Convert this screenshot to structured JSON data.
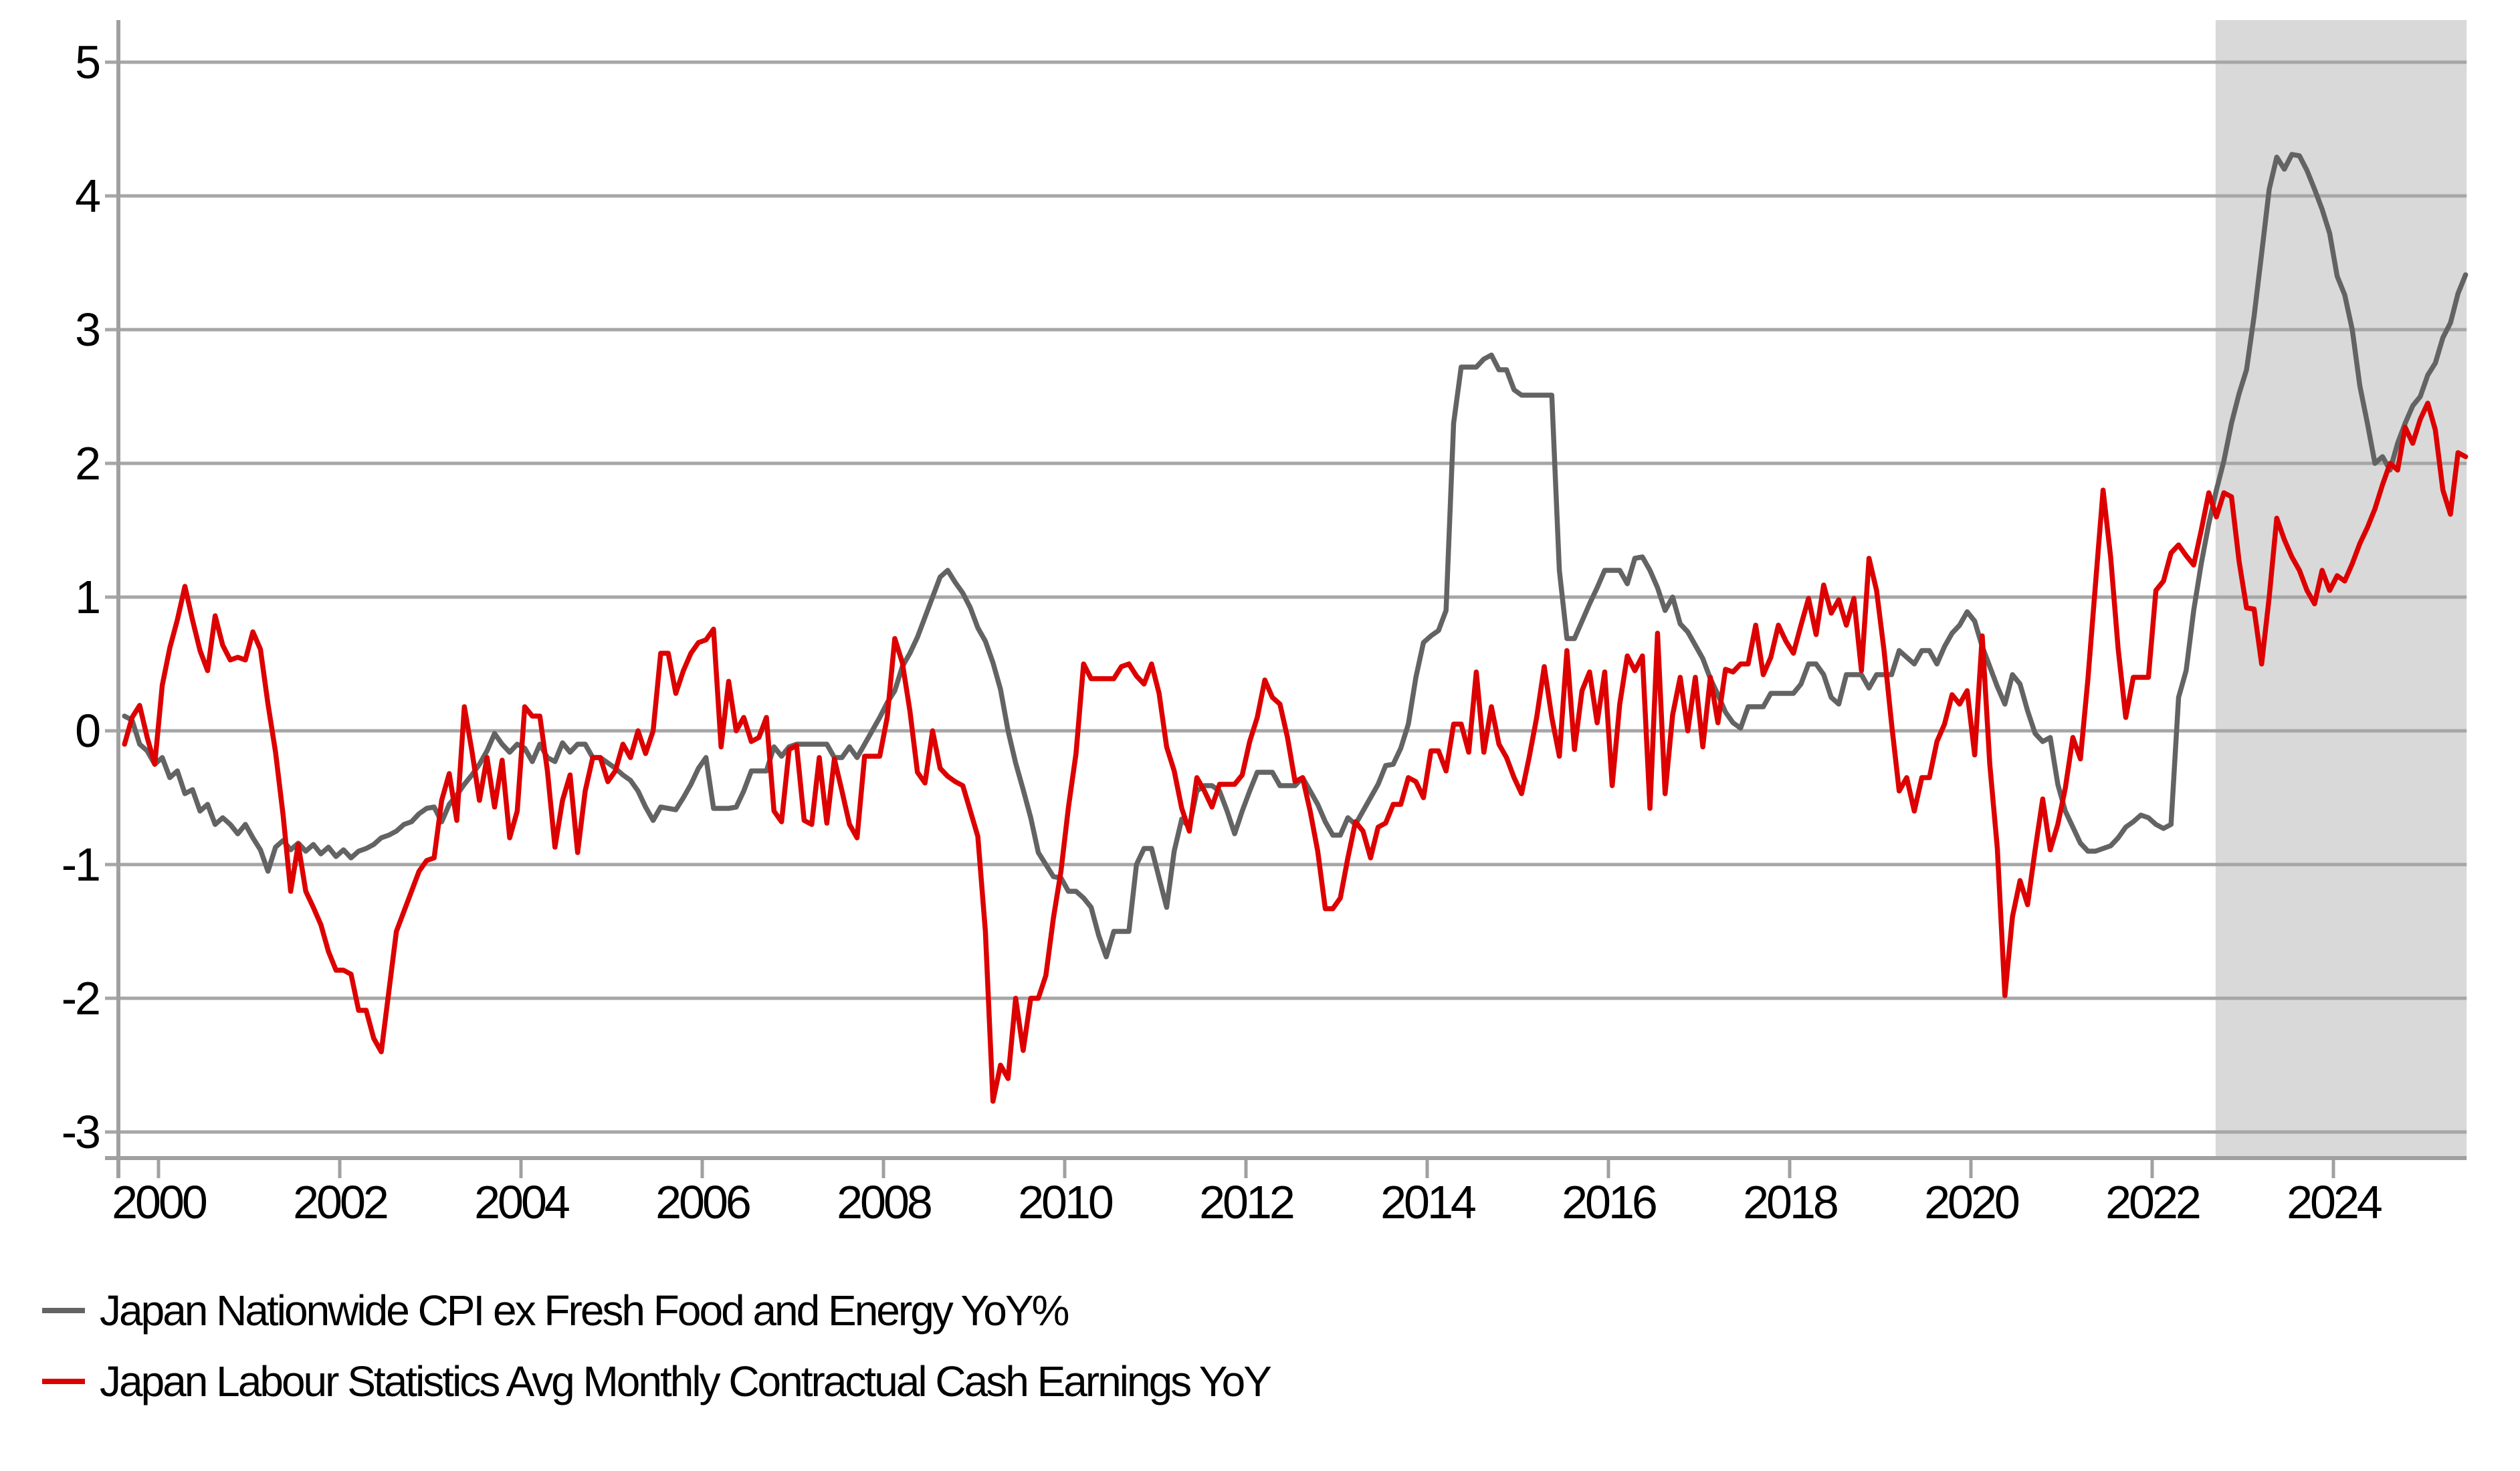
{
  "chart_data": {
    "type": "line",
    "title": "",
    "xlabel": "",
    "ylabel": "",
    "x_start": 1999.625,
    "x_step_per_point": 0.0833333,
    "xlim": [
      1999.56,
      2025.47
    ],
    "ylim": [
      -3.2,
      5.3
    ],
    "grid": "horizontal",
    "y_ticks": [
      5,
      4,
      3,
      2,
      1,
      0,
      -1,
      -2,
      -3
    ],
    "x_ticks": [
      2000,
      2002,
      2004,
      2006,
      2008,
      2010,
      2012,
      2014,
      2016,
      2018,
      2020,
      2022,
      2024
    ],
    "highlight_region": {
      "start": 2022.7,
      "end": 2025.47,
      "color": "#d9d9d9"
    },
    "legend_position": "bottom-left",
    "series": [
      {
        "name": "Japan Nationwide CPI ex Fresh Food and Energy YoY%",
        "color": "#636363",
        "values": [
          0.11,
          0.08,
          -0.1,
          -0.15,
          -0.25,
          -0.2,
          -0.35,
          -0.3,
          -0.47,
          -0.44,
          -0.6,
          -0.55,
          -0.7,
          -0.65,
          -0.7,
          -0.77,
          -0.7,
          -0.8,
          -0.89,
          -1.05,
          -0.87,
          -0.82,
          -0.89,
          -0.84,
          -0.9,
          -0.85,
          -0.92,
          -0.87,
          -0.94,
          -0.89,
          -0.95,
          -0.9,
          -0.88,
          -0.85,
          -0.8,
          -0.78,
          -0.75,
          -0.7,
          -0.68,
          -0.62,
          -0.58,
          -0.57,
          -0.68,
          -0.55,
          -0.48,
          -0.4,
          -0.33,
          -0.25,
          -0.15,
          -0.02,
          -0.1,
          -0.16,
          -0.1,
          -0.13,
          -0.23,
          -0.1,
          -0.2,
          -0.23,
          -0.09,
          -0.16,
          -0.1,
          -0.1,
          -0.2,
          -0.2,
          -0.24,
          -0.28,
          -0.33,
          -0.37,
          -0.45,
          -0.57,
          -0.67,
          -0.57,
          -0.58,
          -0.59,
          -0.5,
          -0.4,
          -0.28,
          -0.2,
          -0.58,
          -0.58,
          -0.58,
          -0.57,
          -0.45,
          -0.3,
          -0.3,
          -0.3,
          -0.12,
          -0.19,
          -0.12,
          -0.1,
          -0.1,
          -0.1,
          -0.1,
          -0.1,
          -0.2,
          -0.2,
          -0.12,
          -0.2,
          -0.1,
          0.0,
          0.1,
          0.21,
          0.3,
          0.48,
          0.58,
          0.7,
          0.85,
          1.0,
          1.15,
          1.2,
          1.11,
          1.03,
          0.92,
          0.77,
          0.67,
          0.51,
          0.31,
          0.0,
          -0.24,
          -0.44,
          -0.65,
          -0.91,
          -1.0,
          -1.09,
          -1.1,
          -1.2,
          -1.2,
          -1.25,
          -1.32,
          -1.53,
          -1.69,
          -1.5,
          -1.5,
          -1.5,
          -1.0,
          -0.88,
          -0.88,
          -1.1,
          -1.32,
          -0.9,
          -0.66,
          -0.72,
          -0.45,
          -0.41,
          -0.41,
          -0.45,
          -0.6,
          -0.77,
          -0.6,
          -0.45,
          -0.31,
          -0.31,
          -0.31,
          -0.41,
          -0.41,
          -0.41,
          -0.35,
          -0.45,
          -0.55,
          -0.68,
          -0.78,
          -0.78,
          -0.65,
          -0.7,
          -0.6,
          -0.5,
          -0.4,
          -0.26,
          -0.25,
          -0.13,
          0.05,
          0.4,
          0.66,
          0.71,
          0.75,
          0.9,
          2.3,
          2.72,
          2.72,
          2.72,
          2.78,
          2.81,
          2.7,
          2.7,
          2.55,
          2.51,
          2.51,
          2.51,
          2.51,
          2.51,
          1.2,
          0.69,
          0.69,
          0.82,
          0.95,
          1.07,
          1.2,
          1.2,
          1.2,
          1.1,
          1.29,
          1.3,
          1.2,
          1.07,
          0.9,
          1.0,
          0.8,
          0.74,
          0.64,
          0.54,
          0.39,
          0.27,
          0.14,
          0.06,
          0.02,
          0.18,
          0.18,
          0.18,
          0.28,
          0.28,
          0.28,
          0.28,
          0.35,
          0.5,
          0.5,
          0.42,
          0.25,
          0.2,
          0.42,
          0.42,
          0.42,
          0.32,
          0.42,
          0.42,
          0.42,
          0.6,
          0.55,
          0.5,
          0.6,
          0.6,
          0.5,
          0.63,
          0.73,
          0.79,
          0.89,
          0.82,
          0.63,
          0.48,
          0.33,
          0.2,
          0.42,
          0.35,
          0.15,
          -0.02,
          -0.08,
          -0.05,
          -0.4,
          -0.6,
          -0.72,
          -0.84,
          -0.9,
          -0.9,
          -0.88,
          -0.86,
          -0.8,
          -0.72,
          -0.68,
          -0.63,
          -0.65,
          -0.7,
          -0.73,
          -0.7,
          0.25,
          0.45,
          0.9,
          1.25,
          1.55,
          1.8,
          2.02,
          2.3,
          2.52,
          2.7,
          3.1,
          3.57,
          4.05,
          4.29,
          4.2,
          4.31,
          4.3,
          4.19,
          4.05,
          3.9,
          3.72,
          3.4,
          3.26,
          3.0,
          2.58,
          2.3,
          2.0,
          2.05,
          1.95,
          2.15,
          2.3,
          2.43,
          2.5,
          2.66,
          2.75,
          2.94,
          3.05,
          3.27,
          3.41
        ]
      },
      {
        "name": "Japan Labour Statistics Avg Monthly Contractual Cash Earnings YoY",
        "color": "#dd0000",
        "values": [
          -0.1,
          0.1,
          0.19,
          -0.05,
          -0.25,
          0.34,
          0.62,
          0.83,
          1.08,
          0.83,
          0.6,
          0.45,
          0.86,
          0.64,
          0.53,
          0.55,
          0.53,
          0.74,
          0.61,
          0.2,
          -0.16,
          -0.63,
          -1.2,
          -0.85,
          -1.2,
          -1.32,
          -1.45,
          -1.65,
          -1.79,
          -1.79,
          -1.82,
          -2.09,
          -2.09,
          -2.3,
          -2.4,
          -1.95,
          -1.5,
          -1.35,
          -1.2,
          -1.05,
          -0.97,
          -0.95,
          -0.52,
          -0.32,
          -0.67,
          0.18,
          -0.15,
          -0.52,
          -0.2,
          -0.57,
          -0.22,
          -0.8,
          -0.6,
          0.18,
          0.11,
          0.11,
          -0.3,
          -0.87,
          -0.52,
          -0.33,
          -0.91,
          -0.45,
          -0.2,
          -0.2,
          -0.38,
          -0.3,
          -0.1,
          -0.2,
          0.0,
          -0.17,
          0.0,
          0.58,
          0.58,
          0.28,
          0.45,
          0.58,
          0.66,
          0.68,
          0.76,
          -0.12,
          0.37,
          0.0,
          0.1,
          -0.08,
          -0.05,
          0.1,
          -0.6,
          -0.68,
          -0.14,
          -0.11,
          -0.67,
          -0.7,
          -0.2,
          -0.69,
          -0.21,
          -0.45,
          -0.7,
          -0.8,
          -0.19,
          -0.19,
          -0.19,
          0.1,
          0.69,
          0.51,
          0.15,
          -0.31,
          -0.39,
          0.0,
          -0.28,
          -0.34,
          -0.38,
          -0.41,
          -0.6,
          -0.79,
          -1.5,
          -2.77,
          -2.5,
          -2.6,
          -2.0,
          -2.39,
          -2.0,
          -2.0,
          -1.83,
          -1.4,
          -1.05,
          -0.57,
          -0.17,
          0.5,
          0.39,
          0.39,
          0.39,
          0.39,
          0.48,
          0.5,
          0.41,
          0.35,
          0.5,
          0.28,
          -0.12,
          -0.3,
          -0.58,
          -0.75,
          -0.35,
          -0.45,
          -0.57,
          -0.4,
          -0.4,
          -0.4,
          -0.33,
          -0.08,
          0.1,
          0.38,
          0.25,
          0.2,
          -0.05,
          -0.38,
          -0.35,
          -0.6,
          -0.9,
          -1.33,
          -1.33,
          -1.25,
          -0.95,
          -0.68,
          -0.75,
          -0.95,
          -0.72,
          -0.69,
          -0.55,
          -0.55,
          -0.35,
          -0.38,
          -0.5,
          -0.15,
          -0.15,
          -0.3,
          0.05,
          0.05,
          -0.16,
          0.44,
          -0.16,
          0.18,
          -0.1,
          -0.2,
          -0.35,
          -0.47,
          -0.2,
          0.1,
          0.48,
          0.1,
          -0.19,
          0.6,
          -0.14,
          0.3,
          0.44,
          0.06,
          0.44,
          -0.41,
          0.2,
          0.56,
          0.45,
          0.56,
          -0.58,
          0.73,
          -0.47,
          0.12,
          0.4,
          0.0,
          0.4,
          -0.12,
          0.4,
          0.06,
          0.46,
          0.44,
          0.5,
          0.5,
          0.79,
          0.42,
          0.55,
          0.79,
          0.67,
          0.58,
          0.79,
          0.99,
          0.72,
          1.09,
          0.88,
          0.98,
          0.79,
          0.99,
          0.45,
          1.29,
          1.05,
          0.6,
          0.05,
          -0.45,
          -0.35,
          -0.6,
          -0.35,
          -0.35,
          -0.08,
          0.05,
          0.27,
          0.2,
          0.3,
          -0.18,
          0.71,
          -0.25,
          -0.88,
          -1.98,
          -1.39,
          -1.12,
          -1.3,
          -0.89,
          -0.51,
          -0.89,
          -0.7,
          -0.43,
          -0.05,
          -0.21,
          0.39,
          1.1,
          1.8,
          1.3,
          0.61,
          0.1,
          0.4,
          0.4,
          0.4,
          1.05,
          1.12,
          1.33,
          1.39,
          1.31,
          1.24,
          1.5,
          1.78,
          1.6,
          1.78,
          1.75,
          1.27,
          0.92,
          0.91,
          0.5,
          1.0,
          1.59,
          1.43,
          1.3,
          1.2,
          1.05,
          0.95,
          1.2,
          1.05,
          1.16,
          1.12,
          1.25,
          1.4,
          1.52,
          1.66,
          1.84,
          2.0,
          1.95,
          2.27,
          2.15,
          2.33,
          2.45,
          2.25,
          1.8,
          1.62,
          2.08,
          2.05
        ]
      }
    ]
  },
  "legend": {
    "row1_label": "Japan Nationwide CPI ex Fresh Food and Energy YoY%",
    "row2_label": "Japan Labour Statistics Avg Monthly Contractual Cash Earnings YoY"
  },
  "style": {
    "grid_color": "#a6a6a6",
    "axis_color": "#a0a0a0",
    "text_color": "#000000",
    "cpi_color": "#636363",
    "earnings_color": "#dd0000",
    "shade_color": "#d9d9d9"
  }
}
